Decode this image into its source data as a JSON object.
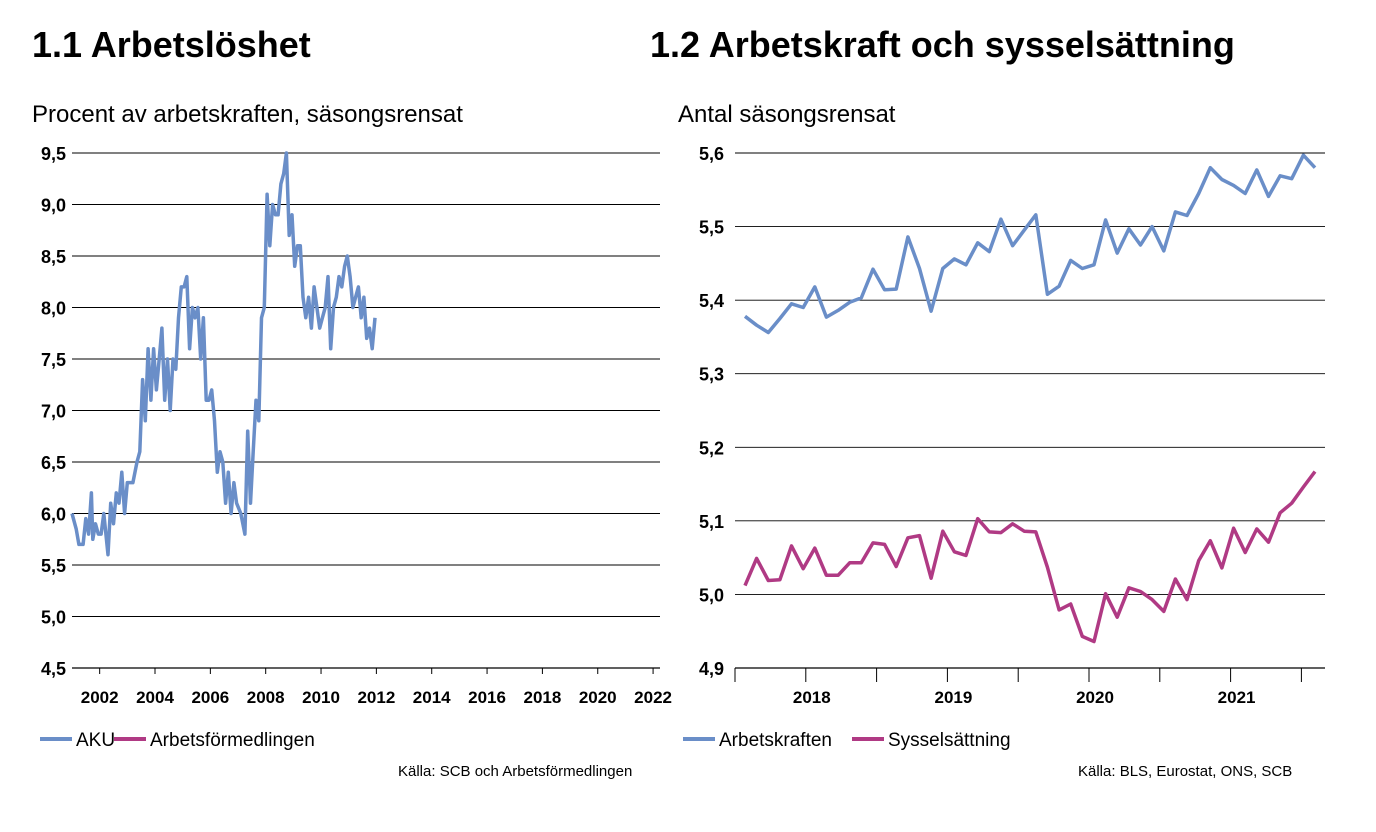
{
  "left": {
    "title": "1.1 Arbetslöshet",
    "subtitle": "Procent av arbetskraften, säsongsrensat",
    "source": "Källa: SCB och Arbetsförmedlingen"
  },
  "right": {
    "title": "1.2 Arbetskraft och sysselsättning",
    "subtitle": "Antal säsongsrensat",
    "source": "Källa: BLS, Eurostat, ONS, SCB"
  },
  "colors": {
    "blue": "#6a8ec8",
    "magenta": "#b03a84",
    "grid": "#000000"
  },
  "chart_data": [
    {
      "type": "line",
      "title": "1.1 Arbetslöshet",
      "subtitle": "Procent av arbetskraften, säsongsrensat",
      "ylim": [
        4.5,
        9.5
      ],
      "yticks": [
        "9,5",
        "9,0",
        "8,5",
        "8,0",
        "7,5",
        "7,0",
        "6,5",
        "6,0",
        "5,5",
        "5,0",
        "4,5"
      ],
      "ytick_values": [
        9.5,
        9.0,
        8.5,
        8.0,
        7.5,
        7.0,
        6.5,
        6.0,
        5.5,
        5.0,
        4.5
      ],
      "xlim": [
        2001.0,
        2022.25
      ],
      "xticks": [
        "2002",
        "2004",
        "2006",
        "2008",
        "2010",
        "2012",
        "2014",
        "2016",
        "2018",
        "2020",
        "2022"
      ],
      "xtick_values": [
        2002,
        2004,
        2006,
        2008,
        2010,
        2012,
        2014,
        2016,
        2018,
        2020,
        2022
      ],
      "grid": true,
      "legend": "bottom-left",
      "series": [
        {
          "name": "AKU",
          "color": "#6a8ec8",
          "points": [
            [
              2001.0,
              6.0
            ],
            [
              2001.2,
              5.7
            ],
            [
              2001.4,
              5.7
            ],
            [
              2001.5,
              6.0
            ],
            [
              2001.6,
              5.8
            ],
            [
              2001.7,
              6.2
            ],
            [
              2001.8,
              5.8
            ],
            [
              2001.9,
              5.9
            ],
            [
              2002.0,
              5.8
            ],
            [
              2002.2,
              6.0
            ],
            [
              2002.3,
              5.6
            ],
            [
              2002.4,
              6.1
            ],
            [
              2002.5,
              5.9
            ],
            [
              2002.6,
              6.2
            ],
            [
              2002.7,
              6.1
            ],
            [
              2002.8,
              6.4
            ],
            [
              2002.9,
              6.0
            ],
            [
              2003.0,
              6.3
            ],
            [
              2003.2,
              6.3
            ],
            [
              2003.3,
              6.5
            ],
            [
              2003.4,
              6.6
            ],
            [
              2003.5,
              7.3
            ],
            [
              2003.6,
              6.9
            ],
            [
              2003.7,
              7.6
            ],
            [
              2003.8,
              7.1
            ],
            [
              2003.9,
              7.6
            ],
            [
              2004.0,
              7.2
            ],
            [
              2004.1,
              7.5
            ],
            [
              2004.2,
              7.8
            ],
            [
              2004.3,
              7.1
            ],
            [
              2004.4,
              7.5
            ],
            [
              2004.5,
              7.0
            ],
            [
              2004.6,
              7.5
            ],
            [
              2004.7,
              7.4
            ],
            [
              2004.8,
              7.9
            ],
            [
              2004.9,
              8.2
            ],
            [
              2005.0,
              8.2
            ],
            [
              2005.1,
              8.3
            ],
            [
              2005.2,
              7.6
            ],
            [
              2005.3,
              8.0
            ],
            [
              2005.4,
              7.9
            ],
            [
              2005.5,
              8.0
            ],
            [
              2005.6,
              7.5
            ],
            [
              2005.7,
              7.9
            ],
            [
              2005.8,
              7.1
            ],
            [
              2005.9,
              7.1
            ],
            [
              2006.0,
              7.2
            ],
            [
              2006.1,
              6.9
            ],
            [
              2006.2,
              6.4
            ],
            [
              2006.3,
              6.6
            ],
            [
              2006.4,
              6.5
            ],
            [
              2006.5,
              6.1
            ],
            [
              2006.6,
              6.4
            ],
            [
              2006.7,
              6.0
            ],
            [
              2006.8,
              6.3
            ],
            [
              2006.9,
              6.1
            ],
            [
              2007.0,
              6.0
            ],
            [
              2007.2,
              5.8
            ],
            [
              2007.3,
              6.8
            ],
            [
              2007.4,
              6.1
            ],
            [
              2007.5,
              6.6
            ],
            [
              2007.6,
              7.1
            ],
            [
              2007.7,
              6.9
            ],
            [
              2007.8,
              7.9
            ],
            [
              2007.9,
              8.0
            ],
            [
              2008.0,
              9.1
            ],
            [
              2008.1,
              8.6
            ],
            [
              2008.2,
              9.0
            ],
            [
              2008.3,
              8.9
            ],
            [
              2008.4,
              8.9
            ],
            [
              2008.5,
              9.2
            ],
            [
              2008.6,
              9.3
            ],
            [
              2008.7,
              9.5
            ],
            [
              2008.8,
              8.7
            ],
            [
              2008.9,
              8.9
            ],
            [
              2009.0,
              8.4
            ],
            [
              2009.1,
              8.6
            ],
            [
              2009.2,
              8.6
            ],
            [
              2009.3,
              8.1
            ],
            [
              2009.4,
              7.9
            ],
            [
              2009.5,
              8.1
            ],
            [
              2009.6,
              7.8
            ],
            [
              2009.7,
              8.2
            ],
            [
              2009.8,
              8.0
            ],
            [
              2009.9,
              7.8
            ],
            [
              2010.0,
              7.9
            ],
            [
              2010.1,
              8.0
            ],
            [
              2010.2,
              8.3
            ],
            [
              2010.3,
              7.6
            ],
            [
              2010.4,
              8.0
            ],
            [
              2010.5,
              8.1
            ],
            [
              2010.6,
              8.3
            ],
            [
              2010.7,
              8.2
            ],
            [
              2010.8,
              8.4
            ],
            [
              2010.9,
              8.5
            ],
            [
              2011.0,
              8.3
            ],
            [
              2011.1,
              8.0
            ],
            [
              2011.2,
              8.1
            ],
            [
              2011.3,
              8.2
            ],
            [
              2011.4,
              7.9
            ],
            [
              2011.5,
              8.1
            ],
            [
              2011.6,
              7.7
            ],
            [
              2011.7,
              7.8
            ],
            [
              2011.8,
              7.6
            ],
            [
              2011.9,
              7.9
            ]
          ],
          "values_note": "estimated from gridlines"
        },
        {
          "name": "Arbetsförmedlingen",
          "color": "#b03a84",
          "points": []
        }
      ]
    },
    {
      "type": "line",
      "title": "1.2 Arbetskraft och sysselsättning",
      "subtitle": "Antal säsongsrensat",
      "ylim": [
        4.9,
        5.6
      ],
      "yticks": [
        "5,6",
        "5,5",
        "5,4",
        "5,3",
        "5,2",
        "5,1",
        "5,0",
        "4,9"
      ],
      "ytick_values": [
        5.6,
        5.5,
        5.4,
        5.3,
        5.2,
        5.1,
        5.0,
        4.9
      ],
      "xlim": [
        0,
        49
      ],
      "xticks": [
        "2018",
        "2019",
        "2020",
        "2021"
      ],
      "grid": true,
      "legend": "bottom-left",
      "series": [
        {
          "name": "Arbetskraften",
          "color": "#6a8ec8",
          "values": [
            5.378,
            5.366,
            5.356,
            5.375,
            5.395,
            5.39,
            5.418,
            5.377,
            5.386,
            5.397,
            5.403,
            5.442,
            5.414,
            5.415,
            5.486,
            5.443,
            5.385,
            5.443,
            5.456,
            5.448,
            5.478,
            5.466,
            5.51,
            5.474,
            5.495,
            5.516,
            5.408,
            5.419,
            5.454,
            5.443,
            5.448,
            5.509,
            5.464,
            5.497,
            5.475,
            5.5,
            5.467,
            5.52,
            5.515,
            5.545,
            5.58,
            5.564,
            5.556,
            5.545,
            5.577,
            5.541,
            5.569,
            5.565,
            5.597,
            5.58
          ]
        },
        {
          "name": "Sysselsättning",
          "color": "#b03a84",
          "values": [
            5.012,
            5.049,
            5.019,
            5.02,
            5.066,
            5.035,
            5.063,
            5.026,
            5.026,
            5.043,
            5.043,
            5.07,
            5.068,
            5.038,
            5.077,
            5.08,
            5.022,
            5.086,
            5.058,
            5.053,
            5.103,
            5.085,
            5.084,
            5.096,
            5.086,
            5.085,
            5.037,
            4.979,
            4.987,
            4.943,
            4.936,
            5.001,
            4.969,
            5.009,
            5.004,
            4.993,
            4.977,
            5.021,
            4.993,
            5.046,
            5.073,
            5.036,
            5.09,
            5.057,
            5.089,
            5.071,
            5.111,
            5.124,
            5.146,
            5.167
          ]
        }
      ]
    }
  ],
  "left_series_full": {
    "aku": [
      [
        2001.0,
        6.0
      ],
      [
        2001.15,
        5.85
      ],
      [
        2001.25,
        5.7
      ],
      [
        2001.4,
        5.7
      ],
      [
        2001.5,
        5.95
      ],
      [
        2001.6,
        5.8
      ],
      [
        2001.7,
        6.2
      ],
      [
        2001.75,
        5.75
      ],
      [
        2001.85,
        5.9
      ],
      [
        2001.95,
        5.8
      ],
      [
        2002.05,
        5.8
      ],
      [
        2002.15,
        6.0
      ],
      [
        2002.3,
        5.6
      ],
      [
        2002.4,
        6.1
      ],
      [
        2002.5,
        5.9
      ],
      [
        2002.6,
        6.2
      ],
      [
        2002.7,
        6.1
      ],
      [
        2002.8,
        6.4
      ],
      [
        2002.9,
        6.0
      ],
      [
        2003.0,
        6.3
      ],
      [
        2003.2,
        6.3
      ],
      [
        2003.35,
        6.5
      ],
      [
        2003.45,
        6.6
      ],
      [
        2003.55,
        7.3
      ],
      [
        2003.65,
        6.9
      ],
      [
        2003.75,
        7.6
      ],
      [
        2003.85,
        7.1
      ],
      [
        2003.95,
        7.6
      ],
      [
        2004.05,
        7.2
      ],
      [
        2004.15,
        7.5
      ],
      [
        2004.25,
        7.8
      ],
      [
        2004.35,
        7.1
      ],
      [
        2004.45,
        7.5
      ],
      [
        2004.55,
        7.0
      ],
      [
        2004.65,
        7.5
      ],
      [
        2004.75,
        7.4
      ],
      [
        2004.85,
        7.9
      ],
      [
        2004.95,
        8.2
      ],
      [
        2005.05,
        8.2
      ],
      [
        2005.15,
        8.3
      ],
      [
        2005.25,
        7.6
      ],
      [
        2005.35,
        8.0
      ],
      [
        2005.45,
        7.9
      ],
      [
        2005.55,
        8.0
      ],
      [
        2005.65,
        7.5
      ],
      [
        2005.75,
        7.9
      ],
      [
        2005.85,
        7.1
      ],
      [
        2005.95,
        7.1
      ],
      [
        2006.05,
        7.2
      ],
      [
        2006.15,
        6.9
      ],
      [
        2006.25,
        6.4
      ],
      [
        2006.35,
        6.6
      ],
      [
        2006.45,
        6.5
      ],
      [
        2006.55,
        6.1
      ],
      [
        2006.65,
        6.4
      ],
      [
        2006.75,
        6.0
      ],
      [
        2006.85,
        6.3
      ],
      [
        2006.95,
        6.1
      ],
      [
        2007.1,
        6.0
      ],
      [
        2007.25,
        5.8
      ],
      [
        2007.35,
        6.8
      ],
      [
        2007.45,
        6.1
      ],
      [
        2007.55,
        6.6
      ],
      [
        2007.65,
        7.1
      ],
      [
        2007.75,
        6.9
      ],
      [
        2007.85,
        7.9
      ],
      [
        2007.95,
        8.0
      ],
      [
        2008.05,
        9.1
      ],
      [
        2008.15,
        8.6
      ],
      [
        2008.25,
        9.0
      ],
      [
        2008.35,
        8.9
      ],
      [
        2008.45,
        8.9
      ],
      [
        2008.55,
        9.2
      ],
      [
        2008.65,
        9.3
      ],
      [
        2008.75,
        9.5
      ],
      [
        2008.85,
        8.7
      ],
      [
        2008.95,
        8.9
      ],
      [
        2009.05,
        8.4
      ],
      [
        2009.15,
        8.6
      ],
      [
        2009.25,
        8.6
      ],
      [
        2009.35,
        8.1
      ],
      [
        2009.45,
        7.9
      ],
      [
        2009.55,
        8.1
      ],
      [
        2009.65,
        7.8
      ],
      [
        2009.75,
        8.2
      ],
      [
        2009.85,
        8.0
      ],
      [
        2009.95,
        7.8
      ],
      [
        2010.05,
        7.9
      ],
      [
        2010.15,
        8.0
      ],
      [
        2010.25,
        8.3
      ],
      [
        2010.35,
        7.6
      ],
      [
        2010.45,
        8.0
      ],
      [
        2010.55,
        8.1
      ],
      [
        2010.65,
        8.3
      ],
      [
        2010.75,
        8.2
      ],
      [
        2010.85,
        8.4
      ],
      [
        2010.95,
        8.5
      ],
      [
        2011.05,
        8.3
      ],
      [
        2011.15,
        8.0
      ],
      [
        2011.25,
        8.1
      ],
      [
        2011.35,
        8.2
      ],
      [
        2011.45,
        7.9
      ],
      [
        2011.55,
        8.1
      ],
      [
        2011.65,
        7.7
      ],
      [
        2011.75,
        7.8
      ],
      [
        2011.85,
        7.6
      ],
      [
        2011.95,
        7.9
      ]
    ],
    "note": "x values are in years"
  }
}
